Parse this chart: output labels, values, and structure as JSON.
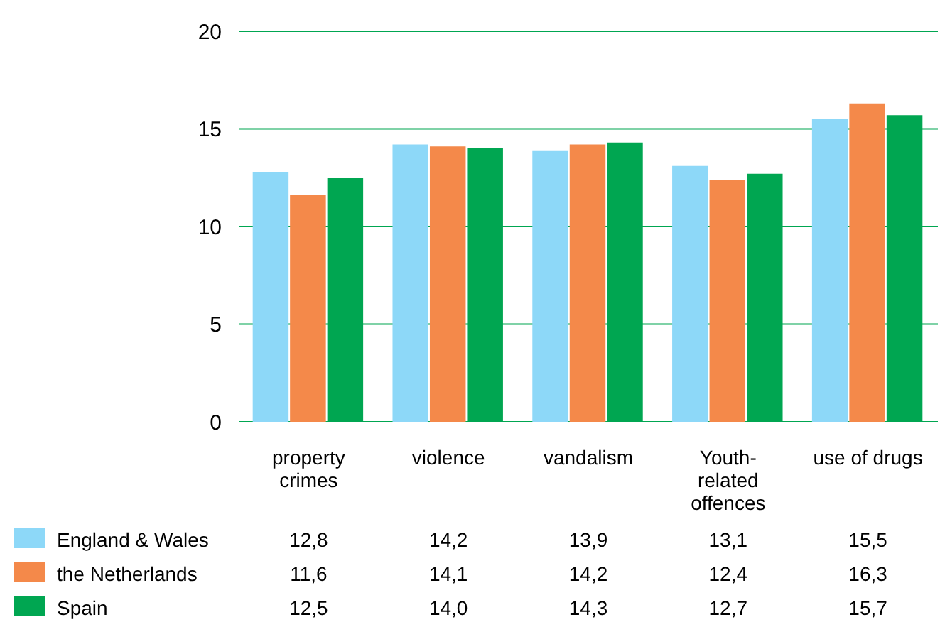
{
  "chart_data": {
    "type": "bar",
    "categories": [
      "property\ncrimes",
      "violence",
      "vandalism",
      "Youth-\nrelated\noffences",
      "use of drugs"
    ],
    "series": [
      {
        "name": "England & Wales",
        "color": "#8dd8f8",
        "values": [
          12.8,
          14.2,
          13.9,
          13.1,
          15.5
        ],
        "value_labels": [
          "12,8",
          "14,2",
          "13,9",
          "13,1",
          "15,5"
        ]
      },
      {
        "name": "the Netherlands",
        "color": "#f4894a",
        "values": [
          11.6,
          14.1,
          14.2,
          12.4,
          16.3
        ],
        "value_labels": [
          "11,6",
          "14,1",
          "14,2",
          "12,4",
          "16,3"
        ]
      },
      {
        "name": "Spain",
        "color": "#00a651",
        "values": [
          12.5,
          14.0,
          14.3,
          12.7,
          15.7
        ],
        "value_labels": [
          "12,5",
          "14,0",
          "14,3",
          "12,7",
          "15,7"
        ]
      }
    ],
    "ylim": [
      0,
      20
    ],
    "yticks": [
      0,
      5,
      10,
      15,
      20
    ],
    "grid": "y",
    "legend": "bottom"
  }
}
